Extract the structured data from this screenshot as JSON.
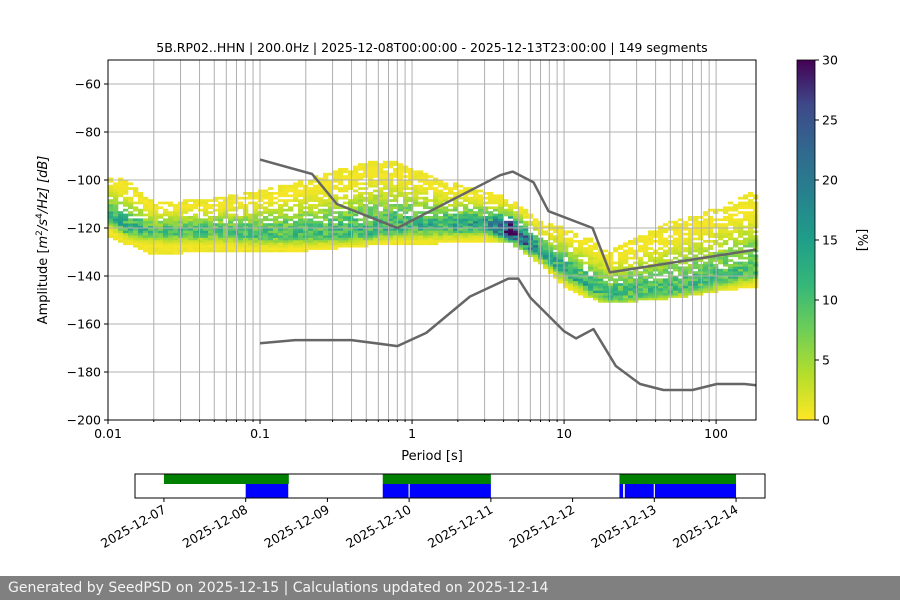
{
  "footer": {
    "text": "Generated by SeedPSD on 2025-12-15 | Calculations updated on 2025-12-14"
  },
  "chart_data": [
    {
      "type": "heatmap",
      "title": "5B.RP02..HHN | 200.0Hz | 2025-12-08T00:00:00 - 2025-12-13T23:00:00 | 149 segments",
      "xlabel": "Period [s]",
      "ylabel_parts": {
        "prefix": "Amplitude [",
        "m": "m",
        "exp2": "2",
        "s": "/s",
        "exp4": "4",
        "hz": "/Hz] [dB]"
      },
      "xscale": "log",
      "xlim": [
        0.01,
        183
      ],
      "ylim": [
        -200,
        -50
      ],
      "xticks": [
        {
          "v": 0.01,
          "label": "0.01"
        },
        {
          "v": 0.1,
          "label": "0.1"
        },
        {
          "v": 1,
          "label": "1"
        },
        {
          "v": 10,
          "label": "10"
        },
        {
          "v": 100,
          "label": "100"
        }
      ],
      "yticks": [
        {
          "v": -60,
          "label": "−60"
        },
        {
          "v": -80,
          "label": "−80"
        },
        {
          "v": -100,
          "label": "−100"
        },
        {
          "v": -120,
          "label": "−120"
        },
        {
          "v": -140,
          "label": "−140"
        },
        {
          "v": -160,
          "label": "−160"
        },
        {
          "v": -180,
          "label": "−180"
        },
        {
          "v": -200,
          "label": "−200"
        }
      ],
      "grid": true,
      "colormap": "viridis_r",
      "colorbar": {
        "label": "[%]",
        "range": [
          0,
          30
        ],
        "ticks": [
          "0",
          "5",
          "10",
          "15",
          "20",
          "25",
          "30"
        ]
      },
      "psd_distribution": [
        {
          "period": 0.01,
          "mode_db": -115,
          "lower_db": -124,
          "upper_db": -98,
          "peak_pct": 11
        },
        {
          "period": 0.013,
          "mode_db": -120,
          "lower_db": -127,
          "upper_db": -100,
          "peak_pct": 12
        },
        {
          "period": 0.02,
          "mode_db": -122,
          "lower_db": -132,
          "upper_db": -110,
          "peak_pct": 10
        },
        {
          "period": 0.05,
          "mode_db": -122,
          "lower_db": -130,
          "upper_db": -108,
          "peak_pct": 10
        },
        {
          "period": 0.1,
          "mode_db": -123,
          "lower_db": -130,
          "upper_db": -105,
          "peak_pct": 10
        },
        {
          "period": 0.2,
          "mode_db": -123,
          "lower_db": -130,
          "upper_db": -100,
          "peak_pct": 10
        },
        {
          "period": 0.5,
          "mode_db": -122,
          "lower_db": -128,
          "upper_db": -93,
          "peak_pct": 11
        },
        {
          "period": 0.8,
          "mode_db": -120,
          "lower_db": -127,
          "upper_db": -93,
          "peak_pct": 11
        },
        {
          "period": 1.5,
          "mode_db": -120,
          "lower_db": -127,
          "upper_db": -100,
          "peak_pct": 12
        },
        {
          "period": 3,
          "mode_db": -119,
          "lower_db": -126,
          "upper_db": -105,
          "peak_pct": 14
        },
        {
          "period": 4.5,
          "mode_db": -122,
          "lower_db": -127,
          "upper_db": -108,
          "peak_pct": 30
        },
        {
          "period": 7,
          "mode_db": -130,
          "lower_db": -136,
          "upper_db": -118,
          "peak_pct": 14
        },
        {
          "period": 10,
          "mode_db": -138,
          "lower_db": -145,
          "upper_db": -120,
          "peak_pct": 13
        },
        {
          "period": 15,
          "mode_db": -145,
          "lower_db": -150,
          "upper_db": -125,
          "peak_pct": 12
        },
        {
          "period": 20,
          "mode_db": -148,
          "lower_db": -152,
          "upper_db": -130,
          "peak_pct": 11
        },
        {
          "period": 50,
          "mode_db": -146,
          "lower_db": -150,
          "upper_db": -118,
          "peak_pct": 10
        },
        {
          "period": 100,
          "mode_db": -142,
          "lower_db": -147,
          "upper_db": -112,
          "peak_pct": 10
        },
        {
          "period": 183,
          "mode_db": -138,
          "lower_db": -145,
          "upper_db": -105,
          "peak_pct": 10
        }
      ],
      "series": [
        {
          "x": [
            0.1,
            0.22,
            0.32,
            0.8,
            3.8,
            4.6,
            6.3,
            7.9,
            15.4,
            20,
            183
          ],
          "y": [
            -91.5,
            -97.5,
            -110,
            -120,
            -98,
            -96.5,
            -101,
            -113,
            -120,
            -138.5,
            -129
          ],
          "color": "#666666"
        },
        {
          "x": [
            0.1,
            0.17,
            0.4,
            0.8,
            1.24,
            2.4,
            4.3,
            5,
            6,
            10,
            12,
            15.6,
            21.9,
            31.6,
            45,
            70,
            101,
            154,
            183
          ],
          "y": [
            -168,
            -166.7,
            -166.7,
            -169.2,
            -163.7,
            -148.6,
            -141.1,
            -141.1,
            -149,
            -163,
            -166,
            -162.1,
            -177.5,
            -185,
            -187.5,
            -187.5,
            -185,
            -185,
            -185.5
          ],
          "color": "#666666"
        }
      ]
    },
    {
      "type": "timeline",
      "xlim": [
        "2025-12-06T15:30",
        "2025-12-14T08:30"
      ],
      "xticks": [
        "2025-12-07",
        "2025-12-08",
        "2025-12-09",
        "2025-12-10",
        "2025-12-11",
        "2025-12-12",
        "2025-12-13",
        "2025-12-14"
      ],
      "rows": [
        {
          "color": "#008000",
          "intervals": [
            [
              "2025-12-07T00:00",
              "2025-12-08T12:40"
            ],
            [
              "2025-12-09T16:15",
              "2025-12-11T00:00"
            ],
            [
              "2025-12-12T13:45",
              "2025-12-14T00:00"
            ]
          ]
        },
        {
          "color": "#0000ff",
          "intervals": [
            [
              "2025-12-08T00:00",
              "2025-12-08T12:30"
            ],
            [
              "2025-12-09T16:15",
              "2025-12-09T23:50"
            ],
            [
              "2025-12-10T00:10",
              "2025-12-11T00:00"
            ],
            [
              "2025-12-12T13:45",
              "2025-12-12T14:50"
            ],
            [
              "2025-12-12T15:20",
              "2025-12-12T23:50"
            ],
            [
              "2025-12-13T00:10",
              "2025-12-14T00:00"
            ]
          ]
        }
      ]
    }
  ]
}
